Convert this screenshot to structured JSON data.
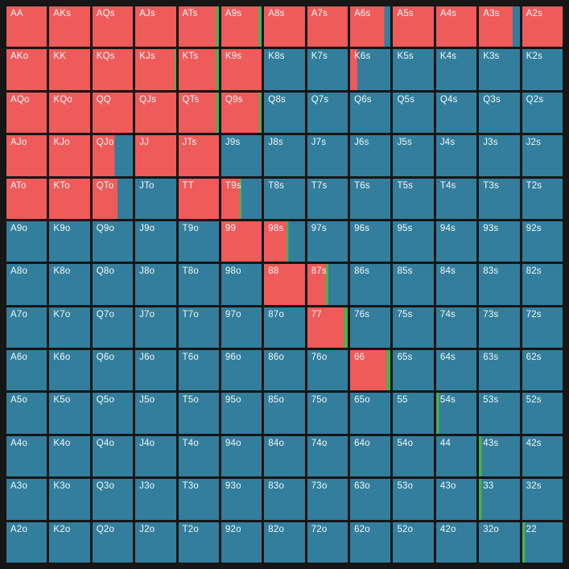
{
  "app": {
    "background_color": "#161616",
    "grid_gap_color": "#161616",
    "label_color": "#f4f8f9"
  },
  "chart_data": {
    "type": "heatmap",
    "title": "13x13 preflop poker hand range matrix",
    "rows_count": 13,
    "cols_count": 13,
    "legend": {
      "raise_color": "#ef5a5a",
      "call_color": "#4caf50",
      "fold_color": "#327e9c"
    },
    "cell_format": [
      "label",
      "raise_frac",
      "call_frac",
      "fold_frac"
    ],
    "cells": [
      [
        [
          "AA",
          1,
          0,
          0
        ],
        [
          "AKs",
          1,
          0,
          0
        ],
        [
          "AQs",
          1,
          0,
          0
        ],
        [
          "AJs",
          1,
          0,
          0
        ],
        [
          "ATs",
          0.92,
          0.08,
          0
        ],
        [
          "A9s",
          0.92,
          0.08,
          0
        ],
        [
          "A8s",
          1,
          0,
          0
        ],
        [
          "A7s",
          1,
          0,
          0
        ],
        [
          "A6s",
          0.85,
          0,
          0.15
        ],
        [
          "A5s",
          1,
          0,
          0
        ],
        [
          "A4s",
          1,
          0,
          0
        ],
        [
          "A3s",
          0.82,
          0,
          0.18
        ],
        [
          "A2s",
          1,
          0,
          0
        ]
      ],
      [
        [
          "AKo",
          1,
          0,
          0
        ],
        [
          "KK",
          1,
          0,
          0
        ],
        [
          "KQs",
          1,
          0,
          0
        ],
        [
          "KJs",
          0.96,
          0.04,
          0
        ],
        [
          "KTs",
          0.92,
          0.08,
          0
        ],
        [
          "K9s",
          1,
          0,
          0
        ],
        [
          "K8s",
          0,
          0,
          1
        ],
        [
          "K7s",
          0,
          0,
          1
        ],
        [
          "K6s",
          0.18,
          0,
          0.82
        ],
        [
          "K5s",
          0,
          0,
          1
        ],
        [
          "K4s",
          0,
          0,
          1
        ],
        [
          "K3s",
          0,
          0,
          1
        ],
        [
          "K2s",
          0,
          0,
          1
        ]
      ],
      [
        [
          "AQo",
          1,
          0,
          0
        ],
        [
          "KQo",
          1,
          0,
          0
        ],
        [
          "QQ",
          1,
          0,
          0
        ],
        [
          "QJs",
          1,
          0,
          0
        ],
        [
          "QTs",
          0.92,
          0.08,
          0
        ],
        [
          "Q9s",
          0.94,
          0.06,
          0
        ],
        [
          "Q8s",
          0,
          0,
          1
        ],
        [
          "Q7s",
          0,
          0,
          1
        ],
        [
          "Q6s",
          0,
          0,
          1
        ],
        [
          "Q5s",
          0,
          0,
          1
        ],
        [
          "Q4s",
          0,
          0,
          1
        ],
        [
          "Q3s",
          0,
          0,
          1
        ],
        [
          "Q2s",
          0,
          0,
          1
        ]
      ],
      [
        [
          "AJo",
          1,
          0,
          0
        ],
        [
          "KJo",
          1,
          0,
          0
        ],
        [
          "QJo",
          0.55,
          0,
          0.45
        ],
        [
          "JJ",
          1,
          0,
          0
        ],
        [
          "JTs",
          1,
          0,
          0
        ],
        [
          "J9s",
          0,
          0,
          1
        ],
        [
          "J8s",
          0,
          0,
          1
        ],
        [
          "J7s",
          0,
          0,
          1
        ],
        [
          "J6s",
          0,
          0,
          1
        ],
        [
          "J5s",
          0,
          0,
          1
        ],
        [
          "J4s",
          0,
          0,
          1
        ],
        [
          "J3s",
          0,
          0,
          1
        ],
        [
          "J2s",
          0,
          0,
          1
        ]
      ],
      [
        [
          "ATo",
          1,
          0,
          0
        ],
        [
          "KTo",
          1,
          0,
          0
        ],
        [
          "QTo",
          0.62,
          0,
          0.38
        ],
        [
          "JTo",
          0,
          0,
          1
        ],
        [
          "TT",
          1,
          0,
          0
        ],
        [
          "T9s",
          0.45,
          0.05,
          0.5
        ],
        [
          "T8s",
          0,
          0,
          1
        ],
        [
          "T7s",
          0,
          0,
          1
        ],
        [
          "T6s",
          0,
          0,
          1
        ],
        [
          "T5s",
          0,
          0,
          1
        ],
        [
          "T4s",
          0,
          0,
          1
        ],
        [
          "T3s",
          0,
          0,
          1
        ],
        [
          "T2s",
          0,
          0,
          1
        ]
      ],
      [
        [
          "A9o",
          0,
          0,
          1
        ],
        [
          "K9o",
          0,
          0,
          1
        ],
        [
          "Q9o",
          0,
          0,
          1
        ],
        [
          "J9o",
          0,
          0,
          1
        ],
        [
          "T9o",
          0,
          0,
          1
        ],
        [
          "99",
          1,
          0,
          0
        ],
        [
          "98s",
          0.55,
          0.05,
          0.4
        ],
        [
          "97s",
          0,
          0,
          1
        ],
        [
          "96s",
          0,
          0,
          1
        ],
        [
          "95s",
          0,
          0,
          1
        ],
        [
          "94s",
          0,
          0,
          1
        ],
        [
          "93s",
          0,
          0,
          1
        ],
        [
          "92s",
          0,
          0,
          1
        ]
      ],
      [
        [
          "A8o",
          0,
          0,
          1
        ],
        [
          "K8o",
          0,
          0,
          1
        ],
        [
          "Q8o",
          0,
          0,
          1
        ],
        [
          "J8o",
          0,
          0,
          1
        ],
        [
          "T8o",
          0,
          0,
          1
        ],
        [
          "98o",
          0,
          0,
          1
        ],
        [
          "88",
          1,
          0,
          0
        ],
        [
          "87s",
          0.45,
          0.07,
          0.48
        ],
        [
          "86s",
          0,
          0,
          1
        ],
        [
          "85s",
          0,
          0,
          1
        ],
        [
          "84s",
          0,
          0,
          1
        ],
        [
          "83s",
          0,
          0,
          1
        ],
        [
          "82s",
          0,
          0,
          1
        ]
      ],
      [
        [
          "A7o",
          0,
          0,
          1
        ],
        [
          "K7o",
          0,
          0,
          1
        ],
        [
          "Q7o",
          0,
          0,
          1
        ],
        [
          "J7o",
          0,
          0,
          1
        ],
        [
          "T7o",
          0,
          0,
          1
        ],
        [
          "97o",
          0,
          0,
          1
        ],
        [
          "87o",
          0,
          0,
          1
        ],
        [
          "77",
          0.9,
          0.1,
          0
        ],
        [
          "76s",
          0,
          0,
          1
        ],
        [
          "75s",
          0,
          0,
          1
        ],
        [
          "74s",
          0,
          0,
          1
        ],
        [
          "73s",
          0,
          0,
          1
        ],
        [
          "72s",
          0,
          0,
          1
        ]
      ],
      [
        [
          "A6o",
          0,
          0,
          1
        ],
        [
          "K6o",
          0,
          0,
          1
        ],
        [
          "Q6o",
          0,
          0,
          1
        ],
        [
          "J6o",
          0,
          0,
          1
        ],
        [
          "T6o",
          0,
          0,
          1
        ],
        [
          "96o",
          0,
          0,
          1
        ],
        [
          "86o",
          0,
          0,
          1
        ],
        [
          "76o",
          0,
          0,
          1
        ],
        [
          "66",
          0.9,
          0.1,
          0
        ],
        [
          "65s",
          0,
          0,
          1
        ],
        [
          "64s",
          0,
          0,
          1
        ],
        [
          "63s",
          0,
          0,
          1
        ],
        [
          "62s",
          0,
          0,
          1
        ]
      ],
      [
        [
          "A5o",
          0,
          0,
          1
        ],
        [
          "K5o",
          0,
          0,
          1
        ],
        [
          "Q5o",
          0,
          0,
          1
        ],
        [
          "J5o",
          0,
          0,
          1
        ],
        [
          "T5o",
          0,
          0,
          1
        ],
        [
          "95o",
          0,
          0,
          1
        ],
        [
          "85o",
          0,
          0,
          1
        ],
        [
          "75o",
          0,
          0,
          1
        ],
        [
          "65o",
          0,
          0,
          1
        ],
        [
          "55",
          0,
          0,
          1
        ],
        [
          "54s",
          0,
          0.07,
          0.93
        ],
        [
          "53s",
          0,
          0,
          1
        ],
        [
          "52s",
          0,
          0,
          1
        ]
      ],
      [
        [
          "A4o",
          0,
          0,
          1
        ],
        [
          "K4o",
          0,
          0,
          1
        ],
        [
          "Q4o",
          0,
          0,
          1
        ],
        [
          "J4o",
          0,
          0,
          1
        ],
        [
          "T4o",
          0,
          0,
          1
        ],
        [
          "94o",
          0,
          0,
          1
        ],
        [
          "84o",
          0,
          0,
          1
        ],
        [
          "74o",
          0,
          0,
          1
        ],
        [
          "64o",
          0,
          0,
          1
        ],
        [
          "54o",
          0,
          0,
          1
        ],
        [
          "44",
          0,
          0,
          1
        ],
        [
          "43s",
          0,
          0.07,
          0.93
        ],
        [
          "42s",
          0,
          0,
          1
        ]
      ],
      [
        [
          "A3o",
          0,
          0,
          1
        ],
        [
          "K3o",
          0,
          0,
          1
        ],
        [
          "Q3o",
          0,
          0,
          1
        ],
        [
          "J3o",
          0,
          0,
          1
        ],
        [
          "T3o",
          0,
          0,
          1
        ],
        [
          "93o",
          0,
          0,
          1
        ],
        [
          "83o",
          0,
          0,
          1
        ],
        [
          "73o",
          0,
          0,
          1
        ],
        [
          "63o",
          0,
          0,
          1
        ],
        [
          "53o",
          0,
          0,
          1
        ],
        [
          "43o",
          0,
          0,
          1
        ],
        [
          "33",
          0,
          0.07,
          0.93
        ],
        [
          "32s",
          0,
          0,
          1
        ]
      ],
      [
        [
          "A2o",
          0,
          0,
          1
        ],
        [
          "K2o",
          0,
          0,
          1
        ],
        [
          "Q2o",
          0,
          0,
          1
        ],
        [
          "J2o",
          0,
          0,
          1
        ],
        [
          "T2o",
          0,
          0,
          1
        ],
        [
          "92o",
          0,
          0,
          1
        ],
        [
          "82o",
          0,
          0,
          1
        ],
        [
          "72o",
          0,
          0,
          1
        ],
        [
          "62o",
          0,
          0,
          1
        ],
        [
          "52o",
          0,
          0,
          1
        ],
        [
          "42o",
          0,
          0,
          1
        ],
        [
          "32o",
          0,
          0,
          1
        ],
        [
          "22",
          0,
          0.07,
          0.93
        ]
      ]
    ]
  }
}
